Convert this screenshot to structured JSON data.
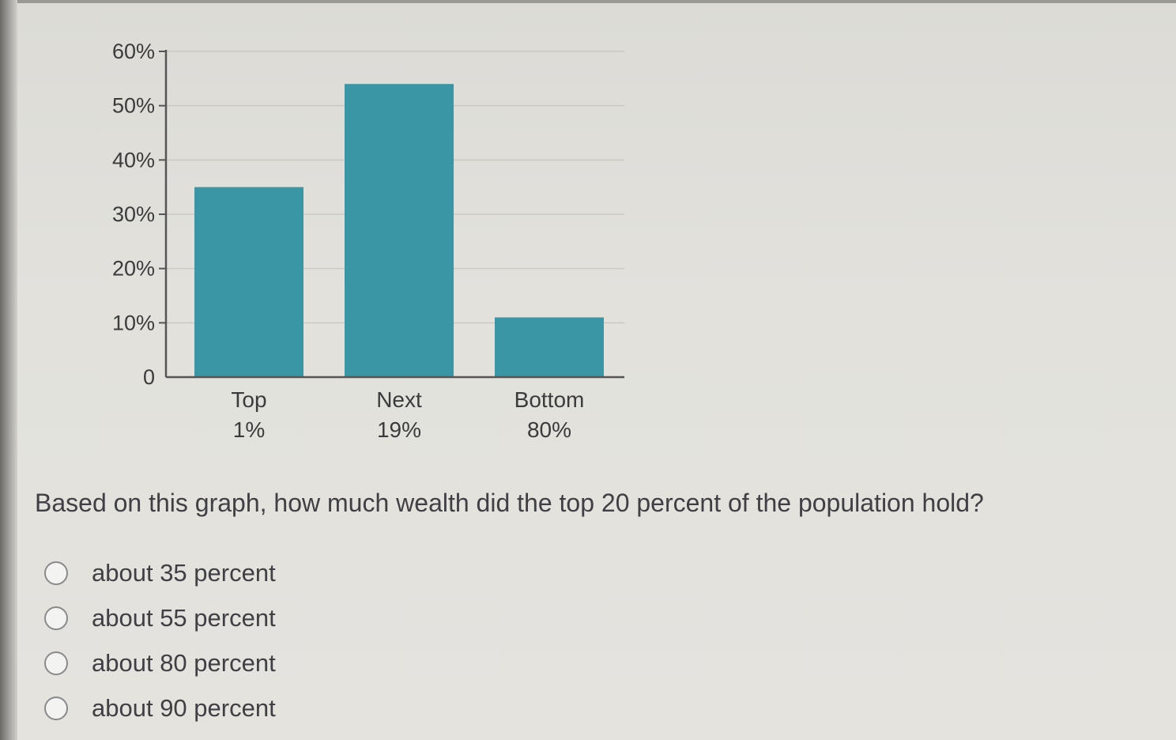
{
  "chart_data": {
    "type": "bar",
    "categories": [
      "Top 1%",
      "Next 19%",
      "Bottom 80%"
    ],
    "category_lines": [
      [
        "Top",
        "1%"
      ],
      [
        "Next",
        "19%"
      ],
      [
        "Bottom",
        "80%"
      ]
    ],
    "values": [
      35,
      54,
      11
    ],
    "ylim": [
      0,
      60
    ],
    "yticks": [
      0,
      10,
      20,
      30,
      40,
      50,
      60
    ],
    "ytick_labels": [
      "0",
      "10%",
      "20%",
      "30%",
      "40%",
      "50%",
      "60%"
    ],
    "grid": true,
    "bar_color": "#3a96a4",
    "title": "",
    "xlabel": "",
    "ylabel": ""
  },
  "question": {
    "text": "Based on this graph, how much wealth did the top 20 percent of the population hold?",
    "options": [
      {
        "label": "about 35 percent"
      },
      {
        "label": "about 55 percent"
      },
      {
        "label": "about 80 percent"
      },
      {
        "label": "about 90 percent"
      }
    ]
  }
}
